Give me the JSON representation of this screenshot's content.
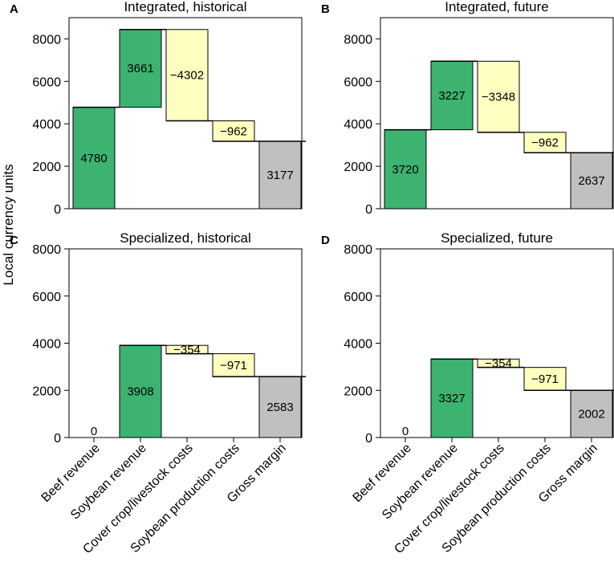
{
  "figure": {
    "ylabel": "Local currency units",
    "colors": {
      "revenue": "#3cb371",
      "cost": "#ffffc0",
      "margin": "#c0c0c0",
      "axis": "#000000"
    }
  },
  "chart_data": [
    {
      "panel": "A",
      "title": "Integrated, historical",
      "type": "bar",
      "subtype": "waterfall",
      "ylim": [
        0,
        9000
      ],
      "yticks": [
        0,
        2000,
        4000,
        6000,
        8000
      ],
      "categories": [
        "Beef revenue",
        "Soybean revenue",
        "Cover crop/livestock costs",
        "Soybean production costs",
        "Gross margin"
      ],
      "kinds": [
        "revenue",
        "revenue",
        "cost",
        "cost",
        "margin"
      ],
      "values": [
        4780,
        3661,
        -4302,
        -962,
        3177
      ],
      "value_labels": [
        "4780",
        "3661",
        "−4302",
        "−962",
        "3177"
      ],
      "show_category_labels": false
    },
    {
      "panel": "B",
      "title": "Integrated, future",
      "type": "bar",
      "subtype": "waterfall",
      "ylim": [
        0,
        9000
      ],
      "yticks": [
        0,
        2000,
        4000,
        6000,
        8000
      ],
      "categories": [
        "Beef revenue",
        "Soybean revenue",
        "Cover crop/livestock costs",
        "Soybean production costs",
        "Gross margin"
      ],
      "kinds": [
        "revenue",
        "revenue",
        "cost",
        "cost",
        "margin"
      ],
      "values": [
        3720,
        3227,
        -3348,
        -962,
        2637
      ],
      "value_labels": [
        "3720",
        "3227",
        "−3348",
        "−962",
        "2637"
      ],
      "show_category_labels": false
    },
    {
      "panel": "C",
      "title": "Specialized, historical",
      "type": "bar",
      "subtype": "waterfall",
      "ylim": [
        0,
        8000
      ],
      "yticks": [
        0,
        2000,
        4000,
        6000,
        8000
      ],
      "categories": [
        "Beef revenue",
        "Soybean revenue",
        "Cover crop/livestock costs",
        "Soybean production costs",
        "Gross margin"
      ],
      "kinds": [
        "revenue",
        "revenue",
        "cost",
        "cost",
        "margin"
      ],
      "values": [
        0,
        3908,
        -354,
        -971,
        2583
      ],
      "value_labels": [
        "0",
        "3908",
        "−354",
        "−971",
        "2583"
      ],
      "show_category_labels": true
    },
    {
      "panel": "D",
      "title": "Specialized, future",
      "type": "bar",
      "subtype": "waterfall",
      "ylim": [
        0,
        8000
      ],
      "yticks": [
        0,
        2000,
        4000,
        6000,
        8000
      ],
      "categories": [
        "Beef revenue",
        "Soybean revenue",
        "Cover crop/livestock costs",
        "Soybean production costs",
        "Gross margin"
      ],
      "kinds": [
        "revenue",
        "revenue",
        "cost",
        "cost",
        "margin"
      ],
      "values": [
        0,
        3327,
        -354,
        -971,
        2002
      ],
      "value_labels": [
        "0",
        "3327",
        "−354",
        "−971",
        "2002"
      ],
      "show_category_labels": true
    }
  ]
}
